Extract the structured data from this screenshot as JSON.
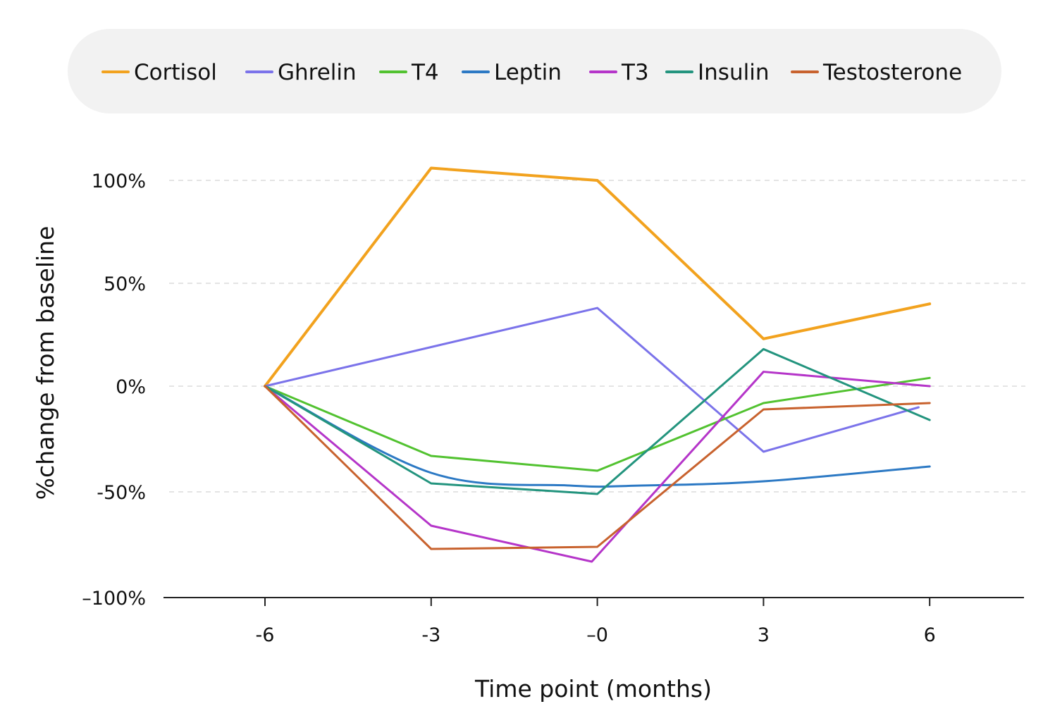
{
  "chart_data": {
    "type": "line",
    "title": "",
    "xlabel": "Time point (months)",
    "ylabel": "%change from baseline",
    "x": [
      -6,
      -3,
      0,
      3,
      6
    ],
    "x_tick_labels": [
      "-6",
      "-3",
      "–0",
      "3",
      "6"
    ],
    "y_ticks": [
      100,
      50,
      0,
      -50,
      -100
    ],
    "y_tick_labels": [
      "100%",
      "50%",
      "0%",
      "-50%",
      "–100%"
    ],
    "ylim": [
      -100,
      100
    ],
    "grid": "horizontal dashed",
    "legend_position": "top",
    "series": [
      {
        "name": "Cortisol",
        "color": "#F2A21E",
        "width": 4,
        "points": [
          [
            -6,
            0
          ],
          [
            -3,
            106
          ],
          [
            0,
            100
          ],
          [
            3,
            23
          ],
          [
            6,
            40
          ]
        ]
      },
      {
        "name": "Ghrelin",
        "color": "#7B73EA",
        "width": 3,
        "points": [
          [
            -6,
            0
          ],
          [
            -3,
            19
          ],
          [
            0,
            38
          ],
          [
            3,
            -31
          ],
          [
            5.8,
            -10
          ]
        ]
      },
      {
        "name": "T4",
        "color": "#52C230",
        "width": 3,
        "points": [
          [
            -6,
            0
          ],
          [
            -3,
            -33
          ],
          [
            0,
            -40
          ],
          [
            3,
            -8
          ],
          [
            6,
            4
          ]
        ]
      },
      {
        "name": "Leptin",
        "color": "#2C79C4",
        "width": 3,
        "smooth": true,
        "points": [
          [
            -6,
            0
          ],
          [
            -3,
            -41
          ],
          [
            -0.5,
            -47
          ],
          [
            0.8,
            -47
          ],
          [
            3,
            -45
          ],
          [
            6,
            -38
          ]
        ]
      },
      {
        "name": "T3",
        "color": "#B535C9",
        "width": 3,
        "points": [
          [
            -6,
            0
          ],
          [
            -3,
            -66
          ],
          [
            -0.1,
            -83
          ],
          [
            3,
            7
          ],
          [
            6,
            0
          ]
        ]
      },
      {
        "name": "Insulin",
        "color": "#23947E",
        "width": 3,
        "points": [
          [
            -6,
            0
          ],
          [
            -3,
            -46
          ],
          [
            0,
            -51
          ],
          [
            3,
            18
          ],
          [
            6,
            -16
          ]
        ]
      },
      {
        "name": "Testosterone",
        "color": "#C8622E",
        "width": 3,
        "points": [
          [
            -6,
            0
          ],
          [
            -3,
            -77
          ],
          [
            0,
            -76
          ],
          [
            3,
            -11
          ],
          [
            6,
            -8
          ]
        ]
      }
    ]
  }
}
